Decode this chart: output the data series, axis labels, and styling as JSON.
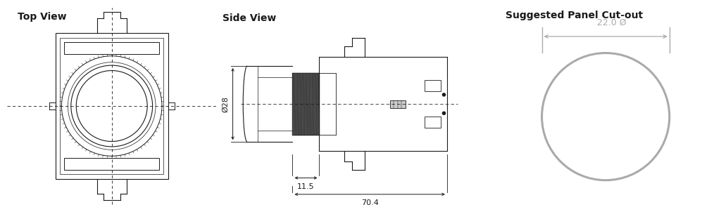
{
  "bg_color": "#ffffff",
  "line_color": "#1a1a1a",
  "dim_color": "#aaaaaa",
  "title_top_view": "Top View",
  "title_side_view": "Side View",
  "title_panel": "Suggested Panel Cut-out",
  "dim_28": "Ø28",
  "dim_11_5": "11.5",
  "dim_70_4": "70.4",
  "dim_22": "22.0 Ø",
  "title_fontsize": 10,
  "dim_fontsize": 8
}
